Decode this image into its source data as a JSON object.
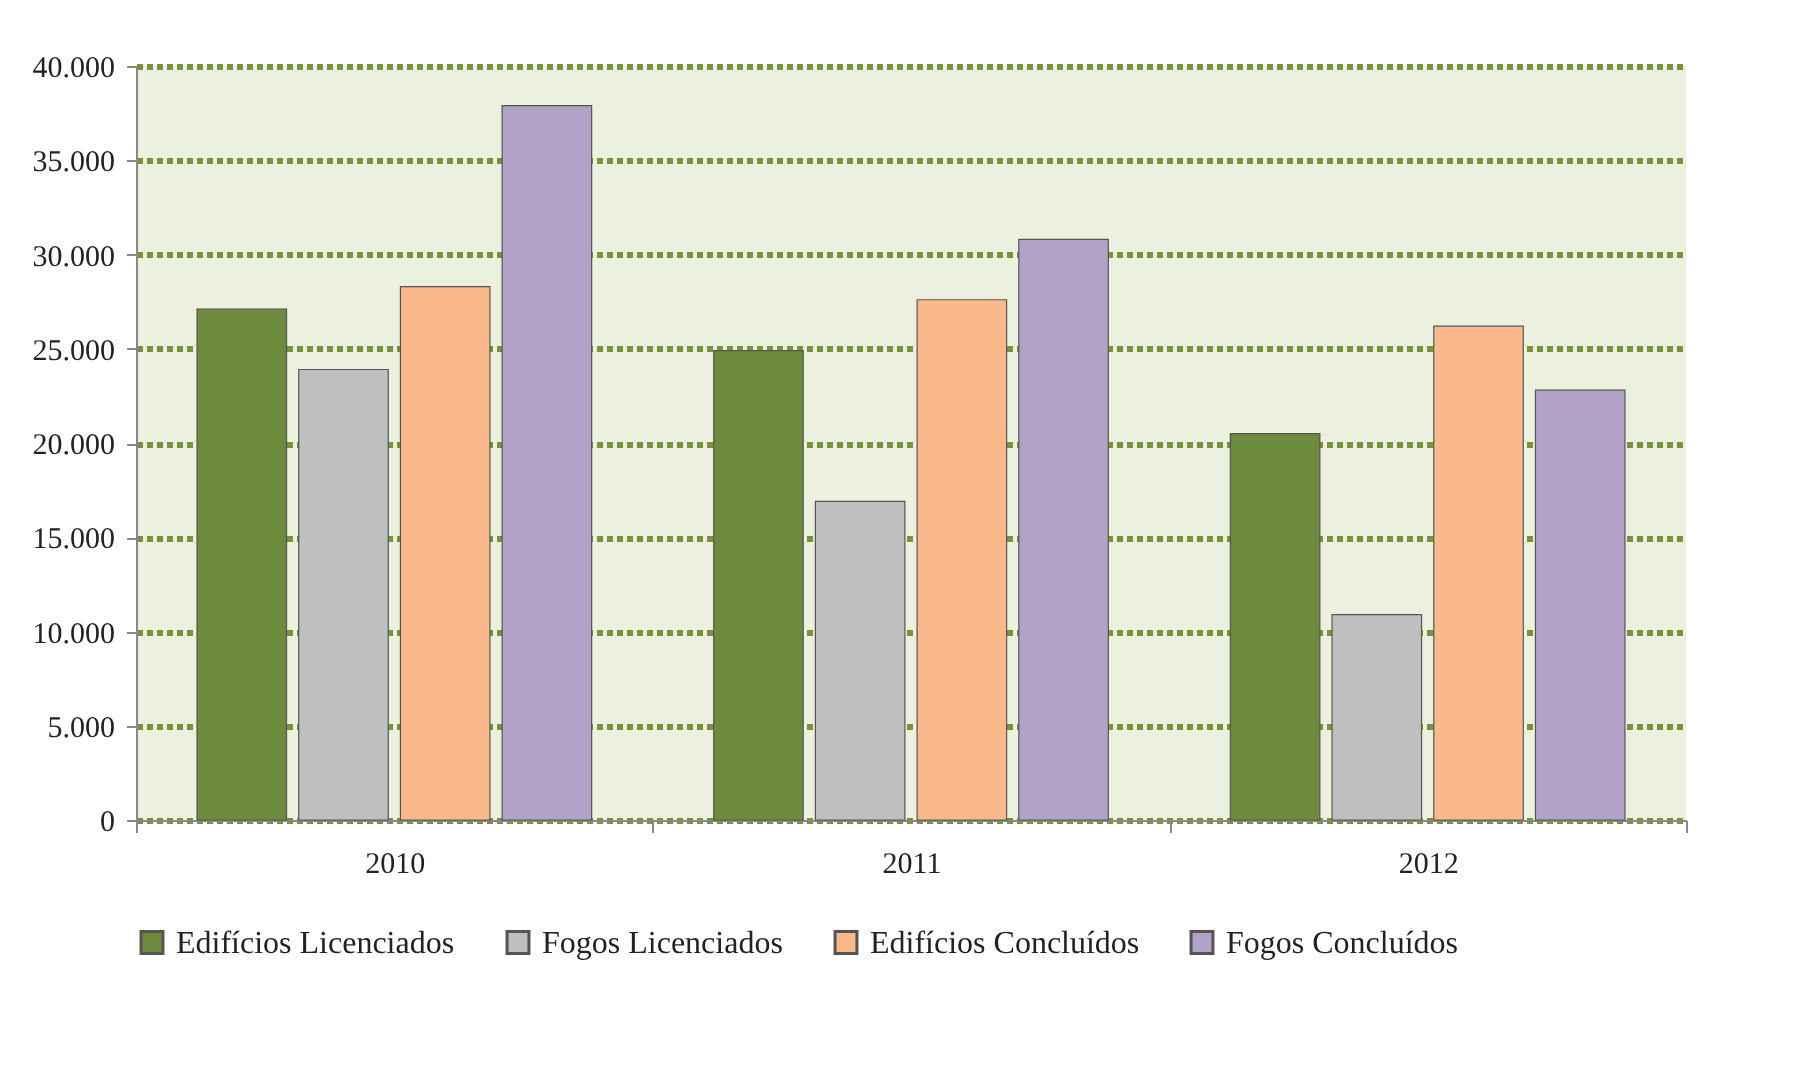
{
  "chart_data": {
    "type": "bar",
    "categories": [
      "2010",
      "2011",
      "2012"
    ],
    "series": [
      {
        "name": "Edifícios Licenciados",
        "color": "#6e8b3d",
        "values": [
          27100,
          24900,
          20500
        ]
      },
      {
        "name": "Fogos Licenciados",
        "color": "#bfbfbf",
        "values": [
          23900,
          16900,
          10900
        ]
      },
      {
        "name": "Edifícios Concluídos",
        "color": "#f9b98a",
        "values": [
          28300,
          27600,
          26200
        ]
      },
      {
        "name": "Fogos Concluídos",
        "color": "#b3a2c7",
        "values": [
          37900,
          30800,
          22800
        ]
      }
    ],
    "ylim": [
      0,
      40000
    ],
    "yticks": [
      {
        "value": 0,
        "label": "0"
      },
      {
        "value": 5000,
        "label": "5.000"
      },
      {
        "value": 10000,
        "label": "10.000"
      },
      {
        "value": 15000,
        "label": "15.000"
      },
      {
        "value": 20000,
        "label": "20.000"
      },
      {
        "value": 25000,
        "label": "25.000"
      },
      {
        "value": 30000,
        "label": "30.000"
      },
      {
        "value": 35000,
        "label": "35.000"
      },
      {
        "value": 40000,
        "label": "40.000"
      }
    ],
    "grid": "y",
    "legend": "bottom"
  }
}
